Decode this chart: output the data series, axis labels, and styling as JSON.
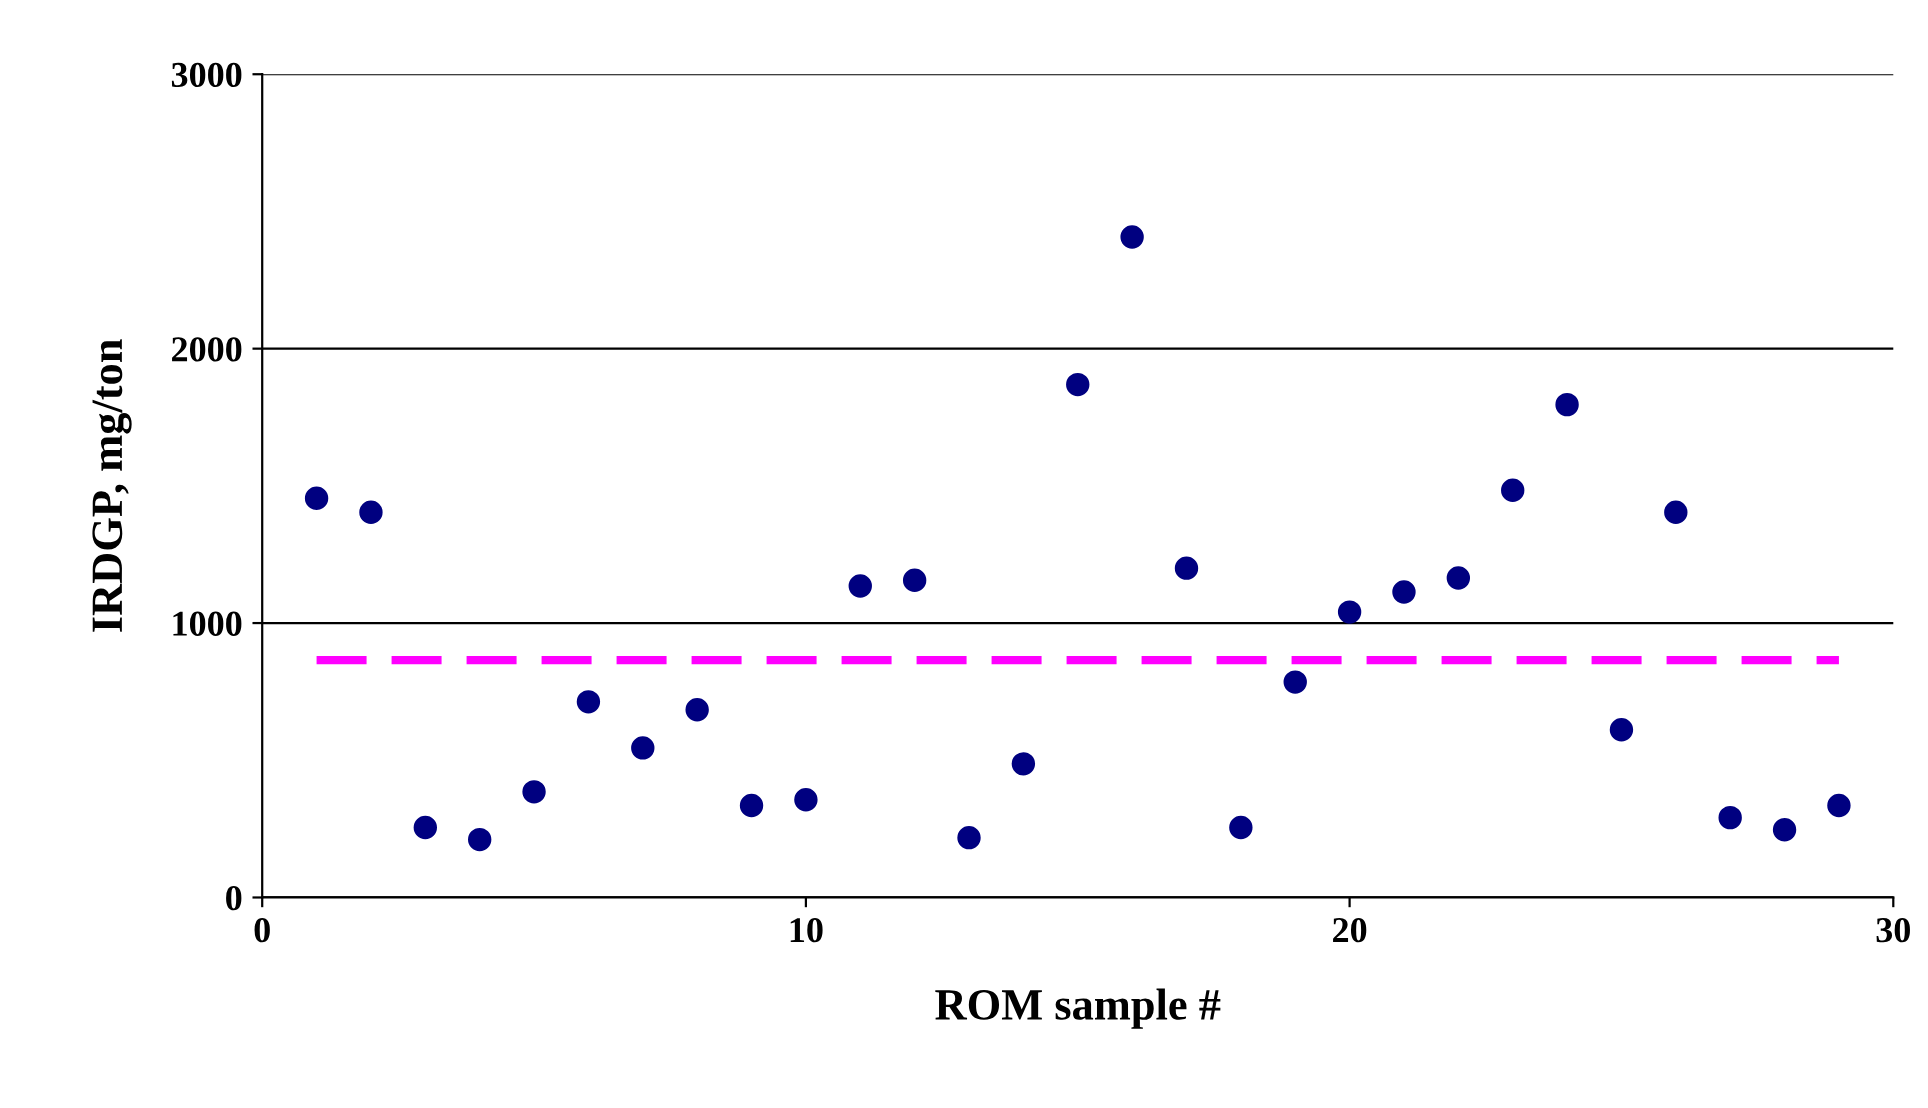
{
  "chart_data": {
    "type": "scatter",
    "xlabel": "ROM sample #",
    "ylabel": "IRDGP, mg/ton",
    "xlim": [
      0,
      30
    ],
    "xticks": [
      0,
      10,
      20,
      30
    ],
    "ylim": [
      0,
      3000
    ],
    "yticks": [
      0,
      1000,
      2000,
      3000
    ],
    "grid": "y",
    "legend": false,
    "marker": "circle",
    "series": [
      {
        "color": "#000080",
        "x": [
          1,
          2,
          3,
          4,
          5,
          6,
          7,
          8,
          9,
          10,
          11,
          12,
          13,
          14,
          15,
          16,
          17,
          18,
          19,
          20,
          21,
          22,
          23,
          24,
          25,
          26,
          27,
          28,
          29
        ],
        "values": [
          1455,
          1404,
          255,
          211,
          385,
          713,
          545,
          684,
          335,
          356,
          1135,
          1156,
          218,
          487,
          1869,
          2407,
          1200,
          255,
          785,
          1040,
          1113,
          1164,
          1484,
          1796,
          611,
          1404,
          291,
          247,
          335
        ]
      },
      {
        "type": "line",
        "color": "#ff00ff",
        "line_style": "dashed",
        "marker": "none",
        "x": [
          1,
          29
        ],
        "values": [
          865,
          865
        ]
      }
    ]
  }
}
